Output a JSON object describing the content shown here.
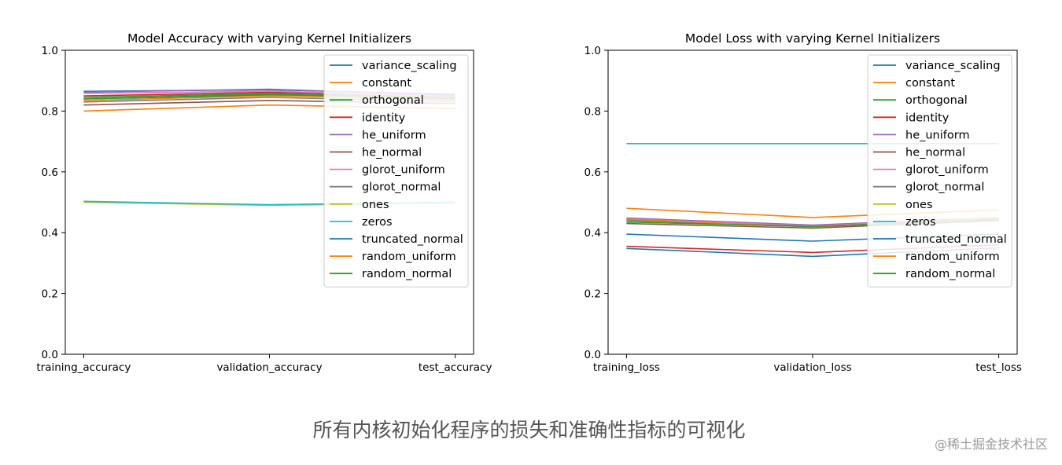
{
  "colors": {
    "variance_scaling": "#1f77b4",
    "constant": "#ff7f0e",
    "orthogonal": "#2ca02c",
    "identity": "#d62728",
    "he_uniform": "#9467bd",
    "he_normal": "#8c564b",
    "glorot_uniform": "#e377c2",
    "glorot_normal": "#7f7f7f",
    "ones": "#bcbd22",
    "zeros": "#17becf",
    "truncated_normal": "#1f77b4",
    "random_uniform": "#ff7f0e",
    "random_normal": "#2ca02c"
  },
  "chart_data": [
    {
      "type": "line",
      "title": "Model Accuracy with varying Kernel Initializers",
      "categories": [
        "training_accuracy",
        "validation_accuracy",
        "test_accuracy"
      ],
      "ylim": [
        0,
        1
      ],
      "yticks": [
        "0.0",
        "0.2",
        "0.4",
        "0.6",
        "0.8",
        "1.0"
      ],
      "legend_position": "top-right",
      "series": [
        {
          "name": "variance_scaling",
          "values": [
            0.865,
            0.87,
            0.855
          ]
        },
        {
          "name": "constant",
          "values": [
            0.8,
            0.82,
            0.808
          ]
        },
        {
          "name": "orthogonal",
          "values": [
            0.845,
            0.858,
            0.845
          ]
        },
        {
          "name": "identity",
          "values": [
            0.85,
            0.862,
            0.85
          ]
        },
        {
          "name": "he_uniform",
          "values": [
            0.862,
            0.872,
            0.852
          ]
        },
        {
          "name": "he_normal",
          "values": [
            0.82,
            0.835,
            0.825
          ]
        },
        {
          "name": "glorot_uniform",
          "values": [
            0.858,
            0.866,
            0.848
          ]
        },
        {
          "name": "glorot_normal",
          "values": [
            0.83,
            0.845,
            0.832
          ]
        },
        {
          "name": "ones",
          "values": [
            0.5,
            0.49,
            0.498
          ]
        },
        {
          "name": "zeros",
          "values": [
            0.503,
            0.492,
            0.5
          ]
        },
        {
          "name": "truncated_normal",
          "values": [
            0.84,
            0.852,
            0.838
          ]
        },
        {
          "name": "random_uniform",
          "values": [
            0.835,
            0.85,
            0.84
          ]
        },
        {
          "name": "random_normal",
          "values": [
            0.84,
            0.855,
            0.842
          ]
        }
      ]
    },
    {
      "type": "line",
      "title": "Model Loss with varying Kernel Initializers",
      "categories": [
        "training_loss",
        "validation_loss",
        "test_loss"
      ],
      "ylim": [
        0,
        1
      ],
      "yticks": [
        "0.0",
        "0.2",
        "0.4",
        "0.6",
        "0.8",
        "1.0"
      ],
      "legend_position": "top-right",
      "series": [
        {
          "name": "variance_scaling",
          "values": [
            0.395,
            0.372,
            0.395
          ]
        },
        {
          "name": "constant",
          "values": [
            0.48,
            0.45,
            0.475
          ]
        },
        {
          "name": "orthogonal",
          "values": [
            0.44,
            0.42,
            0.445
          ]
        },
        {
          "name": "identity",
          "values": [
            0.355,
            0.335,
            0.36
          ]
        },
        {
          "name": "he_uniform",
          "values": [
            0.448,
            0.425,
            0.45
          ]
        },
        {
          "name": "he_normal",
          "values": [
            0.43,
            0.415,
            0.44
          ]
        },
        {
          "name": "glorot_uniform",
          "values": [
            0.445,
            0.422,
            0.448
          ]
        },
        {
          "name": "glorot_normal",
          "values": [
            0.442,
            0.42,
            0.446
          ]
        },
        {
          "name": "ones",
          "values": [
            0.693,
            0.693,
            0.693
          ]
        },
        {
          "name": "zeros",
          "values": [
            0.693,
            0.693,
            0.693
          ]
        },
        {
          "name": "truncated_normal",
          "values": [
            0.348,
            0.322,
            0.35
          ]
        },
        {
          "name": "random_uniform",
          "values": [
            0.445,
            0.418,
            0.448
          ]
        },
        {
          "name": "random_normal",
          "values": [
            0.435,
            0.42,
            0.442
          ]
        }
      ]
    }
  ],
  "caption": "所有内核初始化程序的损失和准确性指标的可视化",
  "watermark": "@稀土掘金技术社区"
}
